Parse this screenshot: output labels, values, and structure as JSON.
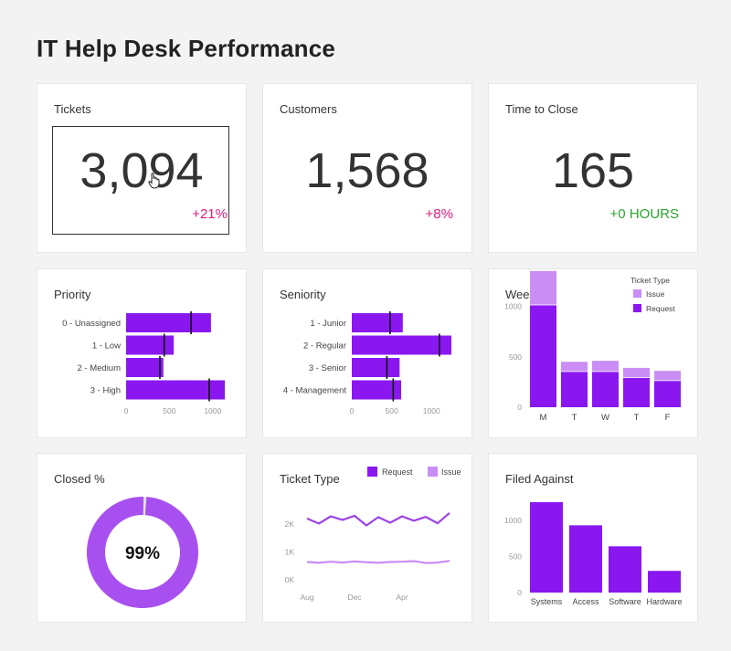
{
  "page": {
    "title": "IT Help Desk Performance"
  },
  "colors": {
    "purple": "#8a17f0",
    "purple_light": "#c98df5",
    "purple_line": "#9b44e8",
    "delta_pink": "#e0197d",
    "delta_green": "#2aa52f",
    "donut_track": "#e2e2e2"
  },
  "kpis": [
    {
      "title": "Tickets",
      "value": "3,094",
      "delta": "+21%",
      "delta_color": "#e0197d"
    },
    {
      "title": "Customers",
      "value": "1,568",
      "delta": "+8%",
      "delta_color": "#e0197d"
    },
    {
      "title": "Time to Close",
      "value": "165",
      "delta": "+0 HOURS",
      "delta_color": "#2aa52f"
    }
  ],
  "chart_data": [
    {
      "id": "priority",
      "type": "bar",
      "orientation": "horizontal",
      "title": "Priority",
      "categories": [
        "0 - Unassigned",
        "1 - Low",
        "2 - Medium",
        "3 - High"
      ],
      "values": [
        980,
        550,
        430,
        1140
      ],
      "targets": [
        750,
        440,
        390,
        960
      ],
      "xticks": [
        "0",
        "500",
        "1000"
      ],
      "xtick_values": [
        0,
        500,
        1000
      ],
      "xlim": [
        0,
        1150
      ]
    },
    {
      "id": "seniority",
      "type": "bar",
      "orientation": "horizontal",
      "title": "Seniority",
      "categories": [
        "1 - Junior",
        "2 - Regular",
        "3 - Senior",
        "4 - Management"
      ],
      "values": [
        640,
        1250,
        600,
        620
      ],
      "targets": [
        480,
        1100,
        440,
        520
      ],
      "xticks": [
        "0",
        "500",
        "1000"
      ],
      "xtick_values": [
        0,
        500,
        1000
      ],
      "xlim": [
        0,
        1250
      ]
    },
    {
      "id": "weekday",
      "type": "bar",
      "stacked": true,
      "title": "Weekday",
      "categories": [
        "M",
        "T",
        "W",
        "T",
        "F"
      ],
      "legend_title": "Ticket Type",
      "series": [
        {
          "name": "Request",
          "values": [
            1010,
            350,
            350,
            290,
            260
          ]
        },
        {
          "name": "Issue",
          "values": [
            340,
            100,
            110,
            100,
            100
          ]
        }
      ],
      "yticks": [
        "0",
        "500",
        "1000"
      ],
      "ytick_values": [
        0,
        500,
        1000
      ],
      "ylim": [
        0,
        1400
      ]
    },
    {
      "id": "closed",
      "type": "pie",
      "title": "Closed %",
      "label": "99%",
      "values": [
        99,
        1
      ]
    },
    {
      "id": "ticket-type",
      "type": "line",
      "title": "Ticket Type",
      "series": [
        {
          "name": "Request",
          "values": [
            2200,
            2020,
            2280,
            2150,
            2300,
            1950,
            2250,
            2050,
            2280,
            2120,
            2260,
            2030,
            2400
          ]
        },
        {
          "name": "Issue",
          "values": [
            640,
            610,
            650,
            620,
            660,
            630,
            610,
            640,
            650,
            670,
            600,
            620,
            680
          ]
        }
      ],
      "xticks": [
        "Aug",
        "Dec",
        "Apr"
      ],
      "xtick_index": [
        0,
        4,
        8
      ],
      "yticks": [
        "0K",
        "1K",
        "2K"
      ],
      "ytick_values": [
        0,
        1000,
        2000
      ],
      "ylim": [
        0,
        2800
      ]
    },
    {
      "id": "filed-against",
      "type": "bar",
      "title": "Filed Against",
      "categories": [
        "Systems",
        "Access",
        "Software",
        "Hardware"
      ],
      "values": [
        1250,
        930,
        640,
        300
      ],
      "yticks": [
        "0",
        "500",
        "1000"
      ],
      "ytick_values": [
        0,
        500,
        1000
      ],
      "ylim": [
        0,
        1300
      ]
    }
  ]
}
